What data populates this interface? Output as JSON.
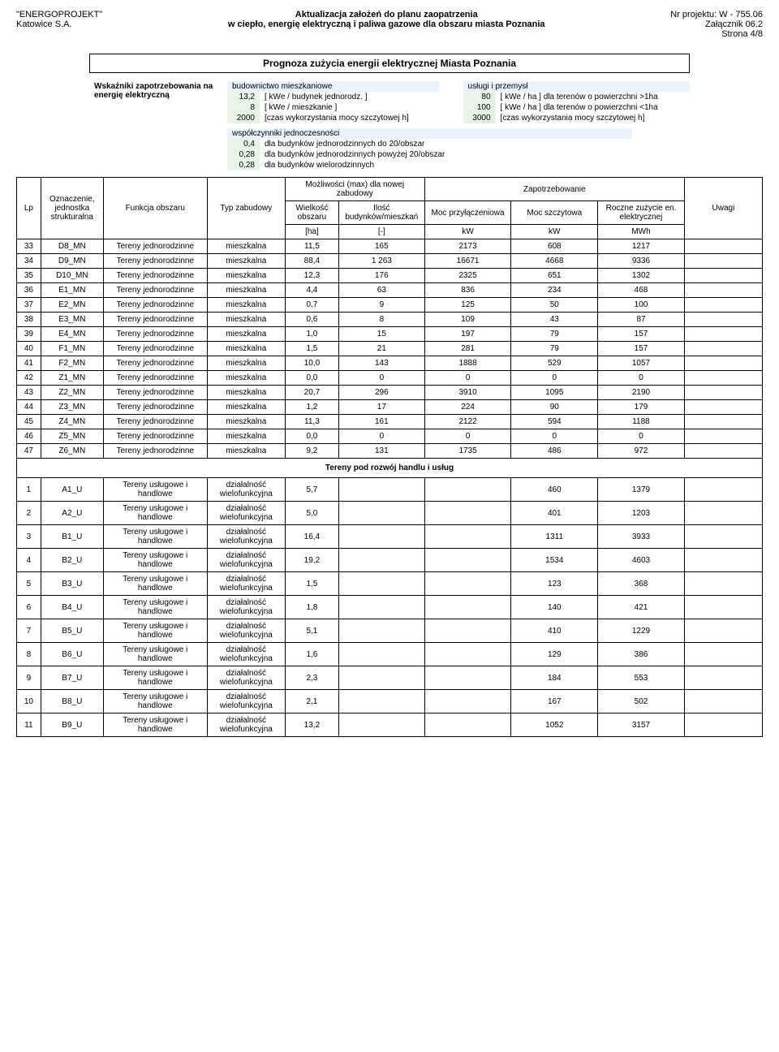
{
  "header": {
    "left1": "\"ENERGOPROJEKT\"",
    "left2": "Katowice S.A.",
    "center1": "Aktualizacja założeń do planu zaopatrzenia",
    "center2": "w ciepło, energię elektryczną i paliwa gazowe dla obszaru miasta Poznania",
    "right1": "Nr projektu: W - 755.06",
    "right2": "Załącznik 06.2",
    "right3": "Strona 4/8"
  },
  "title": "Prognoza zużycia energii elektrycznej Miasta Poznania",
  "params": {
    "label": "Wskaźniki zapotrzebowania na energię elektryczną",
    "left_header": "budownictwo mieszkaniowe",
    "right_header": "usługi i przemysł",
    "left_rows": [
      {
        "v": "13,2",
        "u": "[ kWe / budynek jednorodz. ]"
      },
      {
        "v": "8",
        "u": "[ kWe / mieszkanie ]"
      },
      {
        "v": "2000",
        "u": "[czas wykorzystania mocy szczytowej h]"
      }
    ],
    "right_rows": [
      {
        "v": "80",
        "u": "[ kWe / ha ] dla terenów o powierzchni >1ha"
      },
      {
        "v": "100",
        "u": "[ kWe / ha ] dla terenów o powierzchni <1ha"
      },
      {
        "v": "3000",
        "u": "[czas wykorzystania mocy szczytowej h]"
      }
    ],
    "coef_label": "współczynniki jednoczesności",
    "coef_rows": [
      {
        "v": "0,4",
        "u": "dla budynków jednorodzinnych do 20/obszar"
      },
      {
        "v": "0,28",
        "u": "dla budynków jednorodzinnych powyżej 20/obszar"
      },
      {
        "v": "0,28",
        "u": "dla budynków wielorodzinnych"
      }
    ]
  },
  "columns": {
    "lp": "Lp",
    "oz": "Oznaczenie, jednostka strukturalna",
    "fo": "Funkcja obszaru",
    "ty": "Typ zabudowy",
    "moz": "Możliwości (max) dla nowej zabudowy",
    "wiel": "Wielkość obszaru",
    "ilosc": "Ilość budynków/mieszkań",
    "zp": "Zapotrzebowanie",
    "mp": "Moc przyłączeniowa",
    "ms": "Moc szczytowa",
    "rz": "Roczne zużycie en. elektrycznej",
    "uw": "Uwagi",
    "u_ha": "[ha]",
    "u_dash": "[-]",
    "u_kw": "kW",
    "u_mwh": "MWh"
  },
  "rows": [
    {
      "lp": "33",
      "oz": "D8_MN",
      "fo": "Tereny jednorodzinne",
      "ty": "mieszkalna",
      "w": "11,5",
      "il": "165",
      "mp": "2173",
      "ms": "608",
      "rz": "1217"
    },
    {
      "lp": "34",
      "oz": "D9_MN",
      "fo": "Tereny jednorodzinne",
      "ty": "mieszkalna",
      "w": "88,4",
      "il": "1 263",
      "mp": "16671",
      "ms": "4668",
      "rz": "9336"
    },
    {
      "lp": "35",
      "oz": "D10_MN",
      "fo": "Tereny jednorodzinne",
      "ty": "mieszkalna",
      "w": "12,3",
      "il": "176",
      "mp": "2325",
      "ms": "651",
      "rz": "1302"
    },
    {
      "lp": "36",
      "oz": "E1_MN",
      "fo": "Tereny jednorodzinne",
      "ty": "mieszkalna",
      "w": "4,4",
      "il": "63",
      "mp": "836",
      "ms": "234",
      "rz": "468"
    },
    {
      "lp": "37",
      "oz": "E2_MN",
      "fo": "Tereny jednorodzinne",
      "ty": "mieszkalna",
      "w": "0,7",
      "il": "9",
      "mp": "125",
      "ms": "50",
      "rz": "100"
    },
    {
      "lp": "38",
      "oz": "E3_MN",
      "fo": "Tereny jednorodzinne",
      "ty": "mieszkalna",
      "w": "0,6",
      "il": "8",
      "mp": "109",
      "ms": "43",
      "rz": "87"
    },
    {
      "lp": "39",
      "oz": "E4_MN",
      "fo": "Tereny jednorodzinne",
      "ty": "mieszkalna",
      "w": "1,0",
      "il": "15",
      "mp": "197",
      "ms": "79",
      "rz": "157"
    },
    {
      "lp": "40",
      "oz": "F1_MN",
      "fo": "Tereny jednorodzinne",
      "ty": "mieszkalna",
      "w": "1,5",
      "il": "21",
      "mp": "281",
      "ms": "79",
      "rz": "157"
    },
    {
      "lp": "41",
      "oz": "F2_MN",
      "fo": "Tereny jednorodzinne",
      "ty": "mieszkalna",
      "w": "10,0",
      "il": "143",
      "mp": "1888",
      "ms": "529",
      "rz": "1057"
    },
    {
      "lp": "42",
      "oz": "Z1_MN",
      "fo": "Tereny jednorodzinne",
      "ty": "mieszkalna",
      "w": "0,0",
      "il": "0",
      "mp": "0",
      "ms": "0",
      "rz": "0"
    },
    {
      "lp": "43",
      "oz": "Z2_MN",
      "fo": "Tereny jednorodzinne",
      "ty": "mieszkalna",
      "w": "20,7",
      "il": "296",
      "mp": "3910",
      "ms": "1095",
      "rz": "2190"
    },
    {
      "lp": "44",
      "oz": "Z3_MN",
      "fo": "Tereny jednorodzinne",
      "ty": "mieszkalna",
      "w": "1,2",
      "il": "17",
      "mp": "224",
      "ms": "90",
      "rz": "179"
    },
    {
      "lp": "45",
      "oz": "Z4_MN",
      "fo": "Tereny jednorodzinne",
      "ty": "mieszkalna",
      "w": "11,3",
      "il": "161",
      "mp": "2122",
      "ms": "594",
      "rz": "1188"
    },
    {
      "lp": "46",
      "oz": "Z5_MN",
      "fo": "Tereny jednorodzinne",
      "ty": "mieszkalna",
      "w": "0,0",
      "il": "0",
      "mp": "0",
      "ms": "0",
      "rz": "0"
    },
    {
      "lp": "47",
      "oz": "Z6_MN",
      "fo": "Tereny jednorodzinne",
      "ty": "mieszkalna",
      "w": "9,2",
      "il": "131",
      "mp": "1735",
      "ms": "486",
      "rz": "972"
    }
  ],
  "section2": "Tereny pod rozwój handlu i usług",
  "rows2": [
    {
      "lp": "1",
      "oz": "A1_U",
      "fo": "Tereny usługowe i handlowe",
      "ty": "działalność wielofunkcyjna",
      "w": "5,7",
      "il": "",
      "mp": "",
      "ms": "460",
      "rz": "1379"
    },
    {
      "lp": "2",
      "oz": "A2_U",
      "fo": "Tereny usługowe i handlowe",
      "ty": "działalność wielofunkcyjna",
      "w": "5,0",
      "il": "",
      "mp": "",
      "ms": "401",
      "rz": "1203"
    },
    {
      "lp": "3",
      "oz": "B1_U",
      "fo": "Tereny usługowe i handlowe",
      "ty": "działalność wielofunkcyjna",
      "w": "16,4",
      "il": "",
      "mp": "",
      "ms": "1311",
      "rz": "3933"
    },
    {
      "lp": "4",
      "oz": "B2_U",
      "fo": "Tereny usługowe i handlowe",
      "ty": "działalność wielofunkcyjna",
      "w": "19,2",
      "il": "",
      "mp": "",
      "ms": "1534",
      "rz": "4603"
    },
    {
      "lp": "5",
      "oz": "B3_U",
      "fo": "Tereny usługowe i handlowe",
      "ty": "działalność wielofunkcyjna",
      "w": "1,5",
      "il": "",
      "mp": "",
      "ms": "123",
      "rz": "368"
    },
    {
      "lp": "6",
      "oz": "B4_U",
      "fo": "Tereny usługowe i handlowe",
      "ty": "działalność wielofunkcyjna",
      "w": "1,8",
      "il": "",
      "mp": "",
      "ms": "140",
      "rz": "421"
    },
    {
      "lp": "7",
      "oz": "B5_U",
      "fo": "Tereny usługowe i handlowe",
      "ty": "działalność wielofunkcyjna",
      "w": "5,1",
      "il": "",
      "mp": "",
      "ms": "410",
      "rz": "1229"
    },
    {
      "lp": "8",
      "oz": "B6_U",
      "fo": "Tereny usługowe i handlowe",
      "ty": "działalność wielofunkcyjna",
      "w": "1,6",
      "il": "",
      "mp": "",
      "ms": "129",
      "rz": "386"
    },
    {
      "lp": "9",
      "oz": "B7_U",
      "fo": "Tereny usługowe i handlowe",
      "ty": "działalność wielofunkcyjna",
      "w": "2,3",
      "il": "",
      "mp": "",
      "ms": "184",
      "rz": "553"
    },
    {
      "lp": "10",
      "oz": "B8_U",
      "fo": "Tereny usługowe i handlowe",
      "ty": "działalność wielofunkcyjna",
      "w": "2,1",
      "il": "",
      "mp": "",
      "ms": "167",
      "rz": "502"
    },
    {
      "lp": "11",
      "oz": "B9_U",
      "fo": "Tereny usługowe i handlowe",
      "ty": "działalność wielofunkcyjna",
      "w": "13,2",
      "il": "",
      "mp": "",
      "ms": "1052",
      "rz": "3157"
    }
  ]
}
